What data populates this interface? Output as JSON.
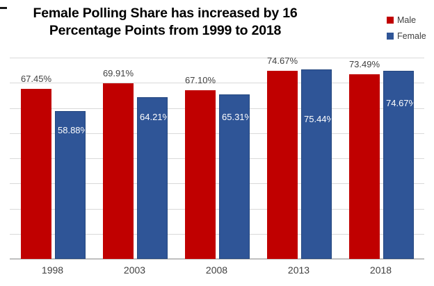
{
  "title": {
    "line1": "Female Polling Share has increased by 16",
    "line2": "Percentage Points from 1999 to 2018"
  },
  "legend": {
    "items": [
      {
        "label": "Male",
        "color": "#C00000"
      },
      {
        "label": "Female",
        "color": "#2F5597"
      }
    ]
  },
  "chart_data": {
    "type": "bar",
    "title": "Female Polling Share has increased by 16 Percentage Points from 1999 to 2018",
    "categories": [
      "1998",
      "2003",
      "2008",
      "2013",
      "2018"
    ],
    "series": [
      {
        "name": "Male",
        "color": "#C00000",
        "values": [
          67.45,
          69.91,
          67.1,
          74.67,
          73.49
        ],
        "data_labels": [
          "67.45%",
          "69.91%",
          "67.10%",
          "74.67%",
          "73.49%"
        ],
        "label_position": "outside-end",
        "label_color": "#404040"
      },
      {
        "name": "Female",
        "color": "#2F5597",
        "border_color": "#24477F",
        "values": [
          58.88,
          64.21,
          65.31,
          75.44,
          74.67
        ],
        "data_labels": [
          "58.88%",
          "64.21%",
          "65.31%",
          "75.44%",
          "74.67%"
        ],
        "label_position": "inside",
        "label_color": "#FFFFFF"
      }
    ],
    "xlabel": "",
    "ylabel": "",
    "ylim": [
      0,
      80
    ],
    "gridline_step": 10,
    "grid": true,
    "gridline_color": "#D9D9D9",
    "axis_line_color": "#BFBFBF",
    "axis_label_color": "#404040",
    "legend_position": "top-right"
  }
}
